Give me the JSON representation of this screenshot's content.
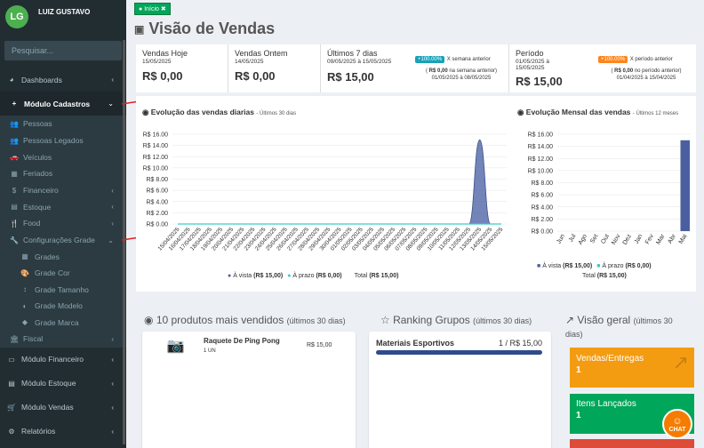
{
  "user": {
    "initials": "LG",
    "name": "LUIZ GUSTAVO"
  },
  "search": {
    "placeholder": "Pesquisar..."
  },
  "sidebar": {
    "dashboards": "Dashboards",
    "modulo_cadastros": "Módulo Cadastros",
    "pessoas": "Pessoas",
    "pessoas_legados": "Pessoas Legados",
    "veiculos": "Veículos",
    "feriados": "Feriados",
    "financeiro": "Financeiro",
    "estoque": "Estoque",
    "food": "Food",
    "configuracoes_grade": "Configurações Grade",
    "grades": "Grades",
    "grade_cor": "Grade Cor",
    "grade_tamanho": "Grade Tamanho",
    "grade_modelo": "Grade Modelo",
    "grade_marca": "Grade Marca",
    "fiscal": "Fiscal",
    "modulo_financeiro": "Módulo Financeiro",
    "modulo_estoque": "Módulo Estoque",
    "modulo_vendas": "Módulo Vendas",
    "relatorios": "Relatórios"
  },
  "breadcrumb": {
    "label": "Início"
  },
  "page": {
    "title": "Visão de Vendas"
  },
  "stats": {
    "hoje": {
      "label": "Vendas Hoje",
      "date": "15/05/2025",
      "value": "R$ 0,00"
    },
    "ontem": {
      "label": "Vendas Ontem",
      "date": "14/05/2025",
      "value": "R$ 0,00"
    },
    "sete": {
      "label": "Últimos 7 dias",
      "date": "09/05/2025 à 15/05/2025",
      "value": "R$ 15,00",
      "badge": "+100.00%",
      "badge_text": "X semana anterior",
      "prev_prefix": "(",
      "prev_value": "R$ 0,00",
      "prev_suffix": "na semana anterior)",
      "prev_range": "01/05/2025 à 08/05/2025"
    },
    "periodo": {
      "label": "Período",
      "date1": "01/05/2025 à",
      "date2": "15/05/2025",
      "value": "R$ 15,00",
      "badge": "+100.00%",
      "badge_text": "X período anterior",
      "prev_prefix": "(",
      "prev_value": "R$ 0,00",
      "prev_suffix": "no período anterior)",
      "prev_range": "01/04/2025 à 15/04/2025"
    }
  },
  "colors": {
    "green": "#00a65a",
    "teal": "#17a2b8",
    "orange": "#ff851b",
    "blue": "#4a5fa0",
    "teal_legend": "#39cccc"
  },
  "chart_daily": {
    "title": "Evolução das vendas diarias",
    "subtitle": "- Últimos 30 dias",
    "legend_vista": "À vista",
    "legend_vista_val": "(R$ 15,00)",
    "legend_prazo": "À prazo",
    "legend_prazo_val": "(R$ 0,00)",
    "total_label": "Total",
    "total_val": "(R$ 15,00)"
  },
  "chart_monthly": {
    "title": "Evolução Mensal das vendas",
    "subtitle": "- Últimos 12 meses",
    "legend_vista": "À vista",
    "legend_vista_val": "(R$ 15,00)",
    "legend_prazo": "À prazo",
    "legend_prazo_val": "(R$ 0,00)",
    "total_label": "Total",
    "total_val": "(R$ 15,00)"
  },
  "chart_data": [
    {
      "type": "area",
      "title": "Evolução das vendas diarias",
      "x": [
        "15/04/2025",
        "16/04/2025",
        "17/04/2025",
        "18/04/2025",
        "19/04/2025",
        "20/04/2025",
        "21/04/2025",
        "22/04/2025",
        "23/04/2025",
        "24/04/2025",
        "25/04/2025",
        "26/04/2025",
        "27/04/2025",
        "28/04/2025",
        "29/04/2025",
        "30/04/2025",
        "01/05/2025",
        "02/05/2025",
        "03/05/2025",
        "04/05/2025",
        "05/05/2025",
        "06/05/2025",
        "07/05/2025",
        "08/05/2025",
        "09/05/2025",
        "10/05/2025",
        "11/05/2025",
        "12/05/2025",
        "13/05/2025",
        "14/05/2025",
        "15/05/2025"
      ],
      "series": [
        {
          "name": "À vista",
          "values": [
            0,
            0,
            0,
            0,
            0,
            0,
            0,
            0,
            0,
            0,
            0,
            0,
            0,
            0,
            0,
            0,
            0,
            0,
            0,
            0,
            0,
            0,
            0,
            0,
            0,
            0,
            0,
            0,
            15,
            0,
            0
          ]
        },
        {
          "name": "À prazo",
          "values": [
            0,
            0,
            0,
            0,
            0,
            0,
            0,
            0,
            0,
            0,
            0,
            0,
            0,
            0,
            0,
            0,
            0,
            0,
            0,
            0,
            0,
            0,
            0,
            0,
            0,
            0,
            0,
            0,
            0,
            0,
            0
          ]
        }
      ],
      "yticks": [
        "R$ 0.00",
        "R$ 2.00",
        "R$ 4.00",
        "R$ 6.00",
        "R$ 8.00",
        "R$ 10.00",
        "R$ 12.00",
        "R$ 14.00",
        "R$ 16.00"
      ],
      "ylim": [
        0,
        16
      ]
    },
    {
      "type": "bar",
      "title": "Evolução Mensal das vendas",
      "categories": [
        "Jun",
        "Jul",
        "Ago",
        "Set",
        "Out",
        "Nov",
        "Dez",
        "Jan",
        "Fev",
        "Mar",
        "Abr",
        "Mai"
      ],
      "series": [
        {
          "name": "À vista",
          "values": [
            0,
            0,
            0,
            0,
            0,
            0,
            0,
            0,
            0,
            0,
            0,
            15
          ]
        },
        {
          "name": "À prazo",
          "values": [
            0,
            0,
            0,
            0,
            0,
            0,
            0,
            0,
            0,
            0,
            0,
            0
          ]
        }
      ],
      "yticks": [
        "R$ 0.00",
        "R$ 2.00",
        "R$ 4.00",
        "R$ 6.00",
        "R$ 8.00",
        "R$ 10.00",
        "R$ 12.00",
        "R$ 14.00",
        "R$ 16.00"
      ],
      "ylim": [
        0,
        16
      ]
    }
  ],
  "top_products": {
    "title": "10 produtos mais vendidos",
    "subtitle": "(últimos 30 dias)",
    "item_name": "Raquete De Ping Pong",
    "item_qty": "1 UN",
    "item_price": "R$ 15,00"
  },
  "ranking": {
    "title": "Ranking Grupos",
    "subtitle": "(últimos 30 dias)",
    "item_name": "Materiais Esportivos",
    "item_value": "1 / R$ 15,00"
  },
  "overview": {
    "title": "Visão geral",
    "subtitle": "(últimos 30 dias)",
    "tile1_label": "Vendas/Entregas",
    "tile1_value": "1",
    "tile2_label": "Itens Lançados",
    "tile2_value": "1"
  },
  "chat": {
    "label": "CHAT"
  }
}
